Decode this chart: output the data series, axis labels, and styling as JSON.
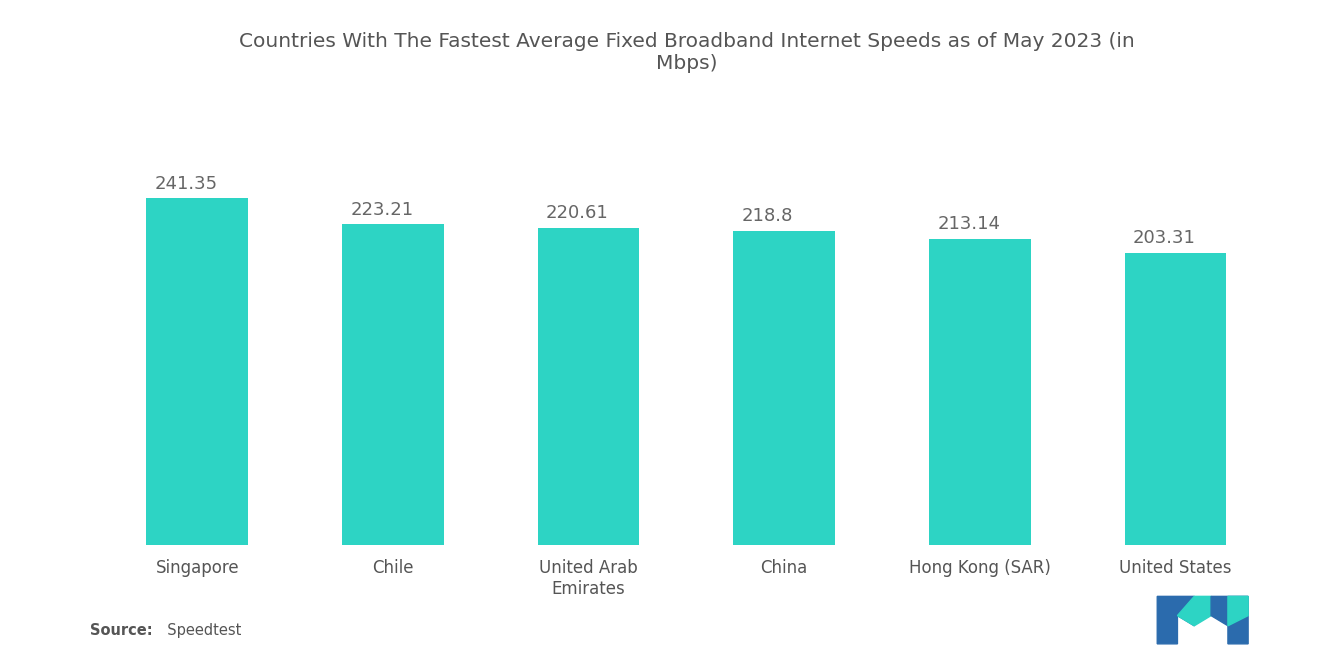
{
  "title": "Countries With The Fastest Average Fixed Broadband Internet Speeds as of May 2023 (in\nMbps)",
  "categories": [
    "Singapore",
    "Chile",
    "United Arab\nEmirates",
    "China",
    "Hong Kong (SAR)",
    "United States"
  ],
  "values": [
    241.35,
    223.21,
    220.61,
    218.8,
    213.14,
    203.31
  ],
  "bar_color": "#2DD4C4",
  "value_color": "#666666",
  "title_color": "#555555",
  "label_color": "#555555",
  "background_color": "#FFFFFF",
  "source_bold": "Source:",
  "source_normal": "  Speedtest",
  "ylim": [
    0,
    310
  ],
  "bar_width": 0.52,
  "title_fontsize": 14.5,
  "label_fontsize": 12,
  "value_fontsize": 13,
  "logo_blue": "#2B6BAD",
  "logo_teal": "#2DD4C4"
}
